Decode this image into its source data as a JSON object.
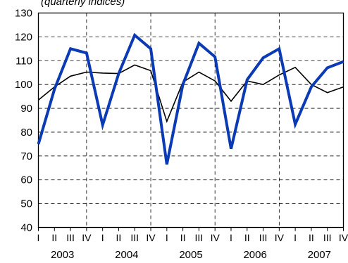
{
  "subtitle": "(quarterly indices)",
  "chart_data": {
    "type": "line",
    "title": "",
    "subtitle": "(quarterly indices)",
    "xlabel": "",
    "ylabel": "",
    "ylim": [
      40,
      130
    ],
    "yticks": [
      40,
      50,
      60,
      70,
      80,
      90,
      100,
      110,
      120,
      130
    ],
    "grid": "dashed",
    "legend": "none",
    "quarter_labels": [
      "I",
      "II",
      "III",
      "IV"
    ],
    "years": [
      "2003",
      "2004",
      "2005",
      "2006",
      "2007"
    ],
    "x": [
      "2003 I",
      "2003 II",
      "2003 III",
      "2003 IV",
      "2004 I",
      "2004 II",
      "2004 III",
      "2004 IV",
      "2005 I",
      "2005 II",
      "2005 III",
      "2005 IV",
      "2006 I",
      "2006 II",
      "2006 III",
      "2006 IV",
      "2007 I",
      "2007 II",
      "2007 III",
      "2007 IV"
    ],
    "series": [
      {
        "color": "#000000",
        "style": "thin",
        "values": [
          93.5,
          99,
          103.5,
          105.2,
          104.8,
          104.6,
          108.2,
          105.8,
          84.5,
          101,
          105.2,
          101.5,
          93,
          101.5,
          100,
          104,
          107.2,
          100,
          96.6,
          99
        ]
      },
      {
        "color": "#0b3ab5",
        "style": "thick",
        "values": [
          75,
          98,
          115,
          113.2,
          83,
          104.5,
          120.7,
          115,
          66.5,
          100,
          117.3,
          111.6,
          73,
          102,
          111.2,
          115,
          83.3,
          99,
          107,
          109.6
        ]
      }
    ]
  }
}
